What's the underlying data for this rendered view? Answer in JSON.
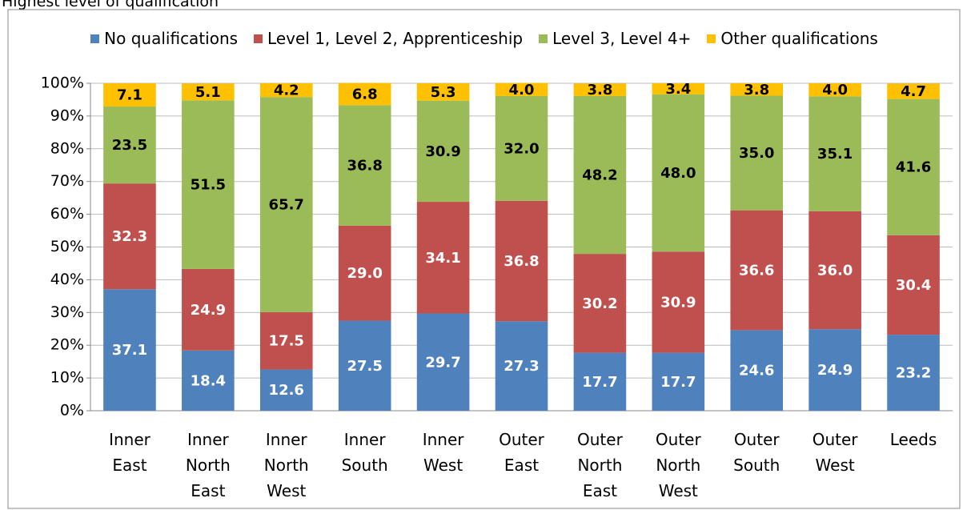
{
  "chart_data": {
    "type": "stacked_bar",
    "title": "Highest level of qualification",
    "categories": [
      "Inner East",
      "Inner North East",
      "Inner North West",
      "Inner South",
      "Inner West",
      "Outer East",
      "Outer North East",
      "Outer North West",
      "Outer South",
      "Outer West",
      "Leeds"
    ],
    "series": [
      {
        "name": "No qualifications",
        "color": "#4f81bd",
        "values": [
          37.1,
          18.4,
          12.6,
          27.5,
          29.7,
          27.3,
          17.7,
          17.7,
          24.6,
          24.9,
          23.2
        ],
        "value_labels": [
          "37.1",
          "18.4",
          "12.6",
          "27.5",
          "29.7",
          "27.3",
          "17.7",
          "17.7",
          "24.6",
          "24.9",
          "23.2"
        ]
      },
      {
        "name": "Level 1, Level 2, Apprenticeship",
        "color": "#c0504d",
        "values": [
          32.3,
          24.9,
          17.5,
          29.0,
          34.1,
          36.8,
          30.2,
          30.9,
          36.6,
          36.0,
          30.4
        ],
        "value_labels": [
          "32.3",
          "24.9",
          "17.5",
          "29.0",
          "34.1",
          "36.8",
          "30.2",
          "30.9",
          "36.6",
          "36.0",
          "30.4"
        ]
      },
      {
        "name": "Level 3, Level 4+",
        "color": "#9bbb59",
        "values": [
          23.5,
          51.5,
          65.7,
          36.8,
          30.9,
          32.0,
          48.2,
          48.0,
          35.0,
          35.1,
          41.6
        ],
        "value_labels": [
          "23.5",
          "51.5",
          "65.7",
          "36.8",
          "30.9",
          "32.0",
          "48.2",
          "48.0",
          "35.0",
          "35.1",
          "41.6"
        ]
      },
      {
        "name": "Other qualifications",
        "color": "#ffc000",
        "values": [
          7.1,
          5.1,
          4.2,
          6.8,
          5.3,
          4.0,
          3.8,
          3.4,
          3.8,
          4.0,
          4.7
        ],
        "value_labels": [
          "7.1",
          "5.1",
          "4.2",
          "6.8",
          "5.3",
          "4.0",
          "3.8",
          "3.4",
          "3.8",
          "4.0",
          "4.7"
        ]
      }
    ],
    "ylim": [
      0,
      100
    ],
    "yticks": [
      {
        "value": 0,
        "label": "0%"
      },
      {
        "value": 10,
        "label": "10%"
      },
      {
        "value": 20,
        "label": "20%"
      },
      {
        "value": 30,
        "label": "30%"
      },
      {
        "value": 40,
        "label": "40%"
      },
      {
        "value": 50,
        "label": "50%"
      },
      {
        "value": 60,
        "label": "60%"
      },
      {
        "value": 70,
        "label": "70%"
      },
      {
        "value": 80,
        "label": "80%"
      },
      {
        "value": 90,
        "label": "90%"
      },
      {
        "value": 100,
        "label": "100%"
      }
    ],
    "grid": true
  }
}
